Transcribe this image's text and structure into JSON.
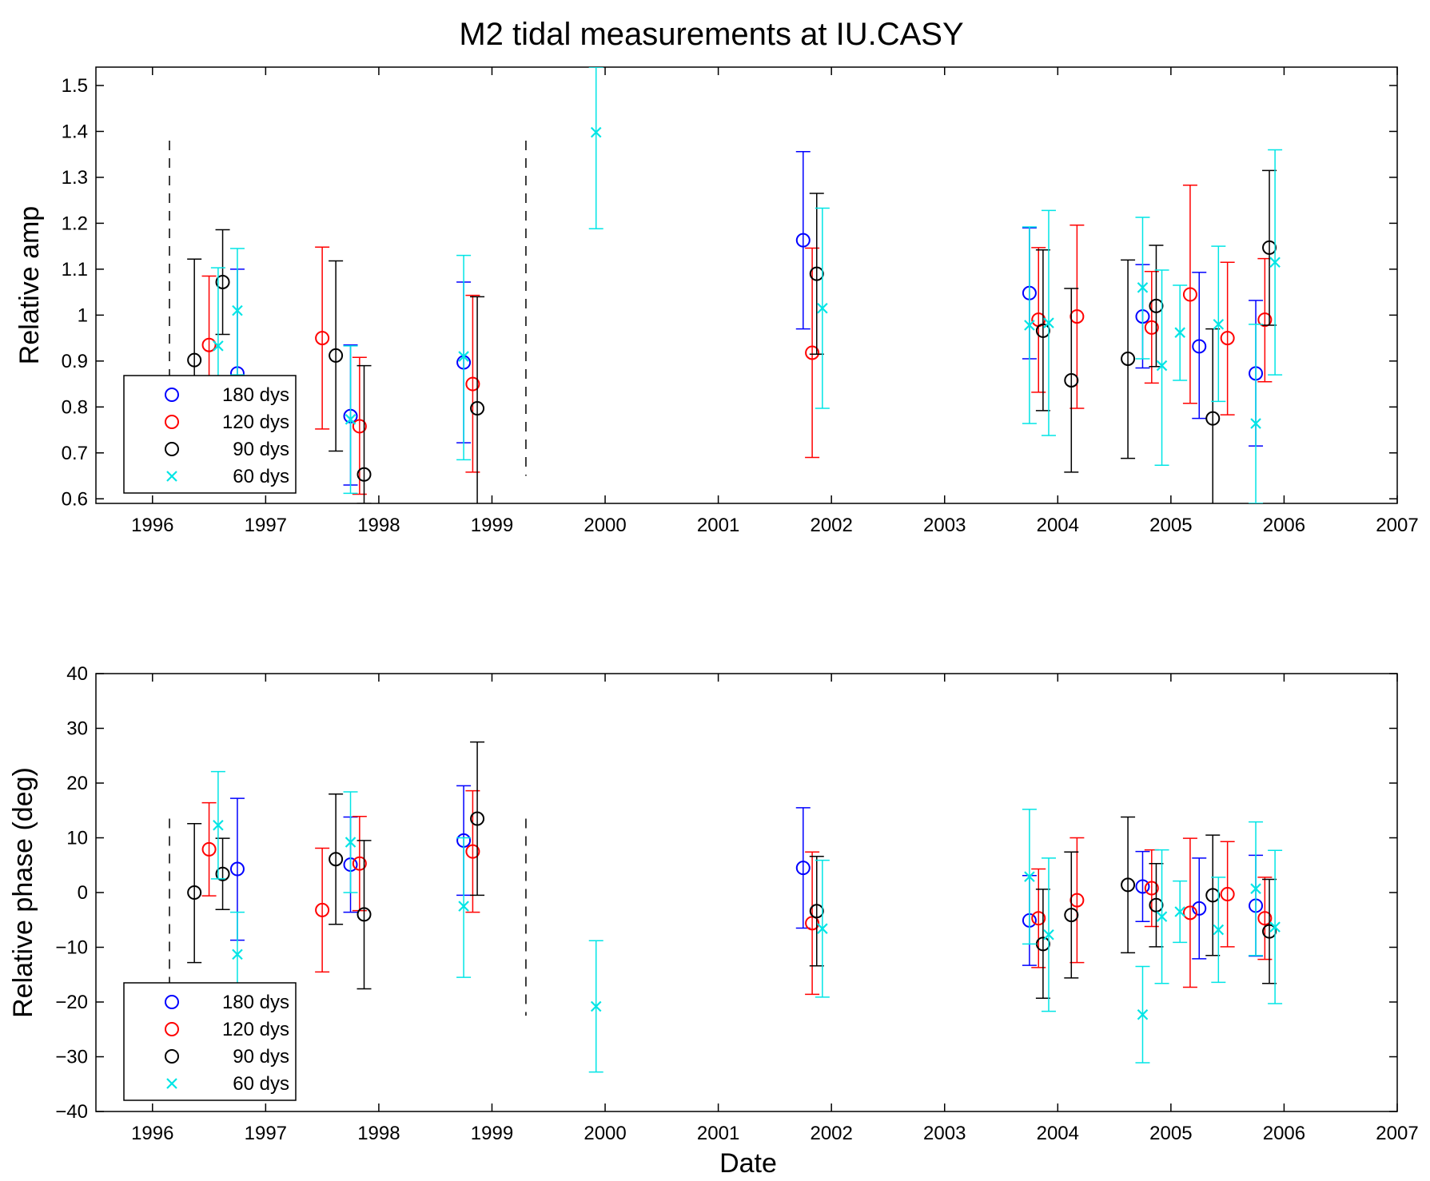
{
  "chart_data": {
    "type": "scatter",
    "title": "M2 tidal measurements at IU.CASY",
    "xlabel": "Date",
    "colors": {
      "180 dys": "#0000ff",
      "120 dys": "#ff0000",
      "90 dys": "#000000",
      "60 dys": "#00e5e5"
    },
    "xlim": [
      1995.5,
      2007
    ],
    "xticks": [
      1996,
      1997,
      1998,
      1999,
      2000,
      2001,
      2002,
      2003,
      2004,
      2005,
      2006,
      2007
    ],
    "vlines_dashed": [
      1996.15,
      1999.3
    ],
    "legend": {
      "position": "bottom-left",
      "entries": [
        {
          "label": "180 dys",
          "marker": "o",
          "color": "#0000ff"
        },
        {
          "label": "120 dys",
          "marker": "o",
          "color": "#ff0000"
        },
        {
          "label": "90 dys",
          "marker": "o",
          "color": "#000000"
        },
        {
          "label": "60 dys",
          "marker": "x",
          "color": "#00e5e5"
        }
      ]
    },
    "panels": [
      {
        "ylabel": "Relative amp",
        "ylim": [
          0.59,
          1.54
        ],
        "yticks": [
          0.6,
          0.7,
          0.8,
          0.9,
          1,
          1.1,
          1.2,
          1.3,
          1.4,
          1.5
        ],
        "ytick_labels": [
          "0.6",
          "0.7",
          "0.8",
          "0.9",
          "1",
          "1.1",
          "1.2",
          "1.3",
          "1.4",
          "1.5"
        ],
        "dashed_range": [
          0.65,
          1.38
        ],
        "series": [
          {
            "name": "180 dys",
            "marker": "o",
            "color": "#0000ff",
            "points": [
              [
                1996.75,
                0.873,
                0.65,
                1.1
              ],
              [
                1997.75,
                0.78,
                0.63,
                0.935
              ],
              [
                1998.75,
                0.897,
                0.722,
                1.072
              ],
              [
                2001.75,
                1.163,
                0.97,
                1.356
              ],
              [
                2003.75,
                1.048,
                0.905,
                1.19
              ],
              [
                2004.75,
                0.997,
                0.885,
                1.11
              ],
              [
                2005.25,
                0.932,
                0.775,
                1.093
              ],
              [
                2005.75,
                0.873,
                0.715,
                1.032
              ]
            ]
          },
          {
            "name": "120 dys",
            "marker": "o",
            "color": "#ff0000",
            "points": [
              [
                1996.5,
                0.935,
                0.8,
                1.085
              ],
              [
                1997.5,
                0.95,
                0.752,
                1.148
              ],
              [
                1997.83,
                0.758,
                0.61,
                0.908
              ],
              [
                1998.83,
                0.85,
                0.658,
                1.043
              ],
              [
                2001.83,
                0.918,
                0.69,
                1.146
              ],
              [
                2003.83,
                0.99,
                0.832,
                1.147
              ],
              [
                2004.17,
                0.997,
                0.797,
                1.196
              ],
              [
                2004.83,
                0.973,
                0.852,
                1.095
              ],
              [
                2005.17,
                1.045,
                0.808,
                1.283
              ],
              [
                2005.5,
                0.95,
                0.783,
                1.115
              ],
              [
                2005.83,
                0.99,
                0.855,
                1.123
              ]
            ]
          },
          {
            "name": "90 dys",
            "marker": "o",
            "color": "#000000",
            "points": [
              [
                1996.37,
                0.902,
                0.68,
                1.122
              ],
              [
                1996.62,
                1.072,
                0.958,
                1.186
              ],
              [
                1997.62,
                0.912,
                0.704,
                1.118
              ],
              [
                1997.87,
                0.653,
                0.59,
                0.89
              ],
              [
                1998.87,
                0.797,
                0.55,
                1.04
              ],
              [
                2001.87,
                1.09,
                0.915,
                1.265
              ],
              [
                2003.87,
                0.966,
                0.792,
                1.142
              ],
              [
                2004.12,
                0.858,
                0.658,
                1.058
              ],
              [
                2004.62,
                0.905,
                0.688,
                1.12
              ],
              [
                2004.87,
                1.02,
                0.888,
                1.152
              ],
              [
                2005.37,
                0.775,
                0.58,
                0.97
              ],
              [
                2005.87,
                1.147,
                0.978,
                1.315
              ]
            ]
          },
          {
            "name": "60 dys",
            "marker": "x",
            "color": "#00e5e5",
            "points": [
              [
                1996.58,
                0.933,
                0.766,
                1.103
              ],
              [
                1996.75,
                1.01,
                0.87,
                1.145
              ],
              [
                1997.75,
                0.773,
                0.612,
                0.933
              ],
              [
                1998.75,
                0.91,
                0.685,
                1.13
              ],
              [
                1999.92,
                1.398,
                1.188,
                1.54
              ],
              [
                2001.92,
                1.015,
                0.797,
                1.233
              ],
              [
                2003.75,
                0.978,
                0.764,
                1.192
              ],
              [
                2003.92,
                0.983,
                0.738,
                1.228
              ],
              [
                2004.75,
                1.06,
                0.905,
                1.213
              ],
              [
                2004.92,
                0.89,
                0.673,
                1.098
              ],
              [
                2005.08,
                0.962,
                0.858,
                1.065
              ],
              [
                2005.42,
                0.98,
                0.812,
                1.15
              ],
              [
                2005.75,
                0.764,
                0.59,
                0.98
              ],
              [
                2005.92,
                1.115,
                0.87,
                1.36
              ]
            ]
          }
        ]
      },
      {
        "ylabel": "Relative phase (deg)",
        "ylim": [
          -40,
          40
        ],
        "yticks": [
          -40,
          -30,
          -20,
          -10,
          0,
          10,
          20,
          30,
          40
        ],
        "ytick_labels": [
          "−40",
          "−30",
          "−20",
          "−10",
          "0",
          "10",
          "20",
          "30",
          "40"
        ],
        "dashed_range": [
          -22.5,
          13.5
        ],
        "series": [
          {
            "name": "180 dys",
            "marker": "o",
            "color": "#0000ff",
            "points": [
              [
                1996.75,
                4.3,
                -8.7,
                17.2
              ],
              [
                1997.75,
                5.1,
                -3.6,
                13.8
              ],
              [
                1998.75,
                9.5,
                -0.5,
                19.5
              ],
              [
                2001.75,
                4.5,
                -6.5,
                15.5
              ],
              [
                2003.75,
                -5.1,
                -13.3,
                3.1
              ],
              [
                2004.75,
                1.1,
                -5.3,
                7.5
              ],
              [
                2005.25,
                -2.9,
                -12.1,
                6.3
              ],
              [
                2005.75,
                -2.4,
                -11.6,
                6.8
              ]
            ]
          },
          {
            "name": "120 dys",
            "marker": "o",
            "color": "#ff0000",
            "points": [
              [
                1996.5,
                7.9,
                -0.6,
                16.4
              ],
              [
                1997.5,
                -3.2,
                -14.5,
                8.1
              ],
              [
                1997.83,
                5.3,
                -3.3,
                13.9
              ],
              [
                1998.83,
                7.5,
                -3.6,
                18.6
              ],
              [
                2001.83,
                -5.6,
                -18.6,
                7.4
              ],
              [
                2003.83,
                -4.7,
                -13.7,
                4.3
              ],
              [
                2004.17,
                -1.4,
                -12.8,
                10.0
              ],
              [
                2004.83,
                0.8,
                -6.2,
                7.8
              ],
              [
                2005.17,
                -3.7,
                -17.3,
                9.9
              ],
              [
                2005.5,
                -0.3,
                -9.9,
                9.3
              ],
              [
                2005.83,
                -4.7,
                -12.2,
                2.8
              ]
            ]
          },
          {
            "name": "90 dys",
            "marker": "o",
            "color": "#000000",
            "points": [
              [
                1996.37,
                0.0,
                -12.8,
                12.6
              ],
              [
                1996.62,
                3.4,
                -3.1,
                9.9
              ],
              [
                1997.62,
                6.1,
                -5.8,
                18.0
              ],
              [
                1997.87,
                -4.0,
                -17.6,
                9.5
              ],
              [
                1998.87,
                13.5,
                -0.5,
                27.5
              ],
              [
                2001.87,
                -3.4,
                -13.4,
                6.6
              ],
              [
                2003.87,
                -9.4,
                -19.3,
                0.6
              ],
              [
                2004.12,
                -4.1,
                -15.6,
                7.4
              ],
              [
                2004.62,
                1.4,
                -11.0,
                13.8
              ],
              [
                2004.87,
                -2.3,
                -9.9,
                5.3
              ],
              [
                2005.37,
                -0.5,
                -11.5,
                10.5
              ],
              [
                2005.87,
                -7.1,
                -16.6,
                2.4
              ]
            ]
          },
          {
            "name": "60 dys",
            "marker": "x",
            "color": "#00e5e5",
            "points": [
              [
                1996.58,
                12.3,
                2.5,
                22.1
              ],
              [
                1996.75,
                -11.3,
                -19.0,
                -3.6
              ],
              [
                1997.75,
                9.2,
                0.0,
                18.4
              ],
              [
                1998.75,
                -2.5,
                -15.5,
                10.0
              ],
              [
                1999.92,
                -20.8,
                -32.8,
                -8.8
              ],
              [
                2001.92,
                -6.6,
                -19.1,
                5.9
              ],
              [
                2003.75,
                2.9,
                -9.4,
                15.2
              ],
              [
                2003.92,
                -7.7,
                -21.7,
                6.3
              ],
              [
                2004.75,
                -22.3,
                -31.1,
                -13.5
              ],
              [
                2004.92,
                -4.4,
                -16.6,
                7.8
              ],
              [
                2005.08,
                -3.5,
                -9.1,
                2.1
              ],
              [
                2005.42,
                -6.8,
                -16.4,
                2.8
              ],
              [
                2005.75,
                0.7,
                -11.5,
                12.9
              ],
              [
                2005.92,
                -6.3,
                -20.3,
                7.7
              ]
            ]
          }
        ]
      }
    ]
  }
}
